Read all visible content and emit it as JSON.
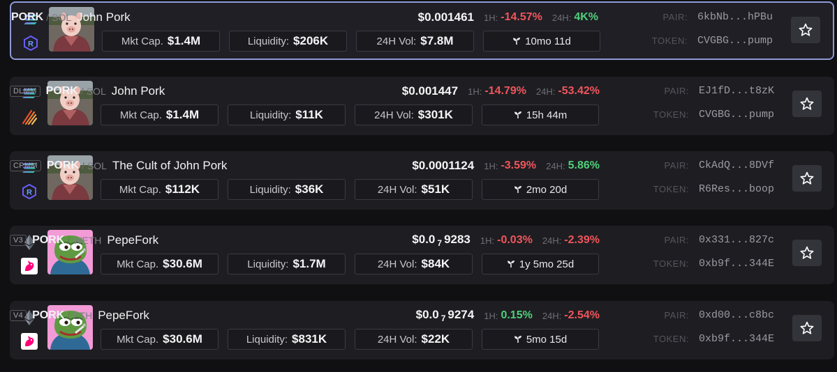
{
  "colors": {
    "negative": "#f0555b",
    "positive": "#4fd07a",
    "selected_border": "#8e9ad8"
  },
  "rows": [
    {
      "chain": "solana-icon",
      "dex": "raydium-icon",
      "avatar": "pig-avatar",
      "dex_badge": "",
      "symbol": "PORK",
      "quote": "SOL",
      "name": "John Pork",
      "price_prefix": "$0.001461",
      "price_sub": "",
      "price_rest": "",
      "h1_label": "1H:",
      "h1": "-14.57%",
      "h1_sign": "neg",
      "h24_label": "24H:",
      "h24": "4K%",
      "h24_sign": "pos",
      "mkt_label": "Mkt Cap.",
      "mkt": "$1.4M",
      "liq_label": "Liquidity:",
      "liq": "$206K",
      "vol_label": "24H Vol:",
      "vol": "$7.8M",
      "age": "10mo 11d",
      "pair_label": "PAIR:",
      "pair": "6kbNb...hPBu",
      "token_label": "TOKEN:",
      "token": "CVGBG...pump",
      "selected": true
    },
    {
      "chain": "solana-icon",
      "dex": "meteora-icon",
      "avatar": "pig-avatar",
      "dex_badge": "DLMM",
      "symbol": "PORK",
      "quote": "SOL",
      "name": "John Pork",
      "price_prefix": "$0.001447",
      "price_sub": "",
      "price_rest": "",
      "h1_label": "1H:",
      "h1": "-14.79%",
      "h1_sign": "neg",
      "h24_label": "24H:",
      "h24": "-53.42%",
      "h24_sign": "neg",
      "mkt_label": "Mkt Cap.",
      "mkt": "$1.4M",
      "liq_label": "Liquidity:",
      "liq": "$11K",
      "vol_label": "24H Vol:",
      "vol": "$301K",
      "age": "15h 44m",
      "pair_label": "PAIR:",
      "pair": "EJ1fD...t8zK",
      "token_label": "TOKEN:",
      "token": "CVGBG...pump",
      "selected": false
    },
    {
      "chain": "solana-icon",
      "dex": "raydium-icon",
      "avatar": "pig-avatar",
      "dex_badge": "CPMM",
      "symbol": "PORK",
      "quote": "SOL",
      "name": "The Cult of John Pork",
      "price_prefix": "$0.0001124",
      "price_sub": "",
      "price_rest": "",
      "h1_label": "1H:",
      "h1": "-3.59%",
      "h1_sign": "neg",
      "h24_label": "24H:",
      "h24": "5.86%",
      "h24_sign": "pos",
      "mkt_label": "Mkt Cap.",
      "mkt": "$112K",
      "liq_label": "Liquidity:",
      "liq": "$36K",
      "vol_label": "24H Vol:",
      "vol": "$51K",
      "age": "2mo 20d",
      "pair_label": "PAIR:",
      "pair": "CkAdQ...8DVf",
      "token_label": "TOKEN:",
      "token": "R6Res...boop",
      "selected": false
    },
    {
      "chain": "ethereum-icon",
      "dex": "uniswap-icon",
      "avatar": "pepe-avatar",
      "dex_badge": "V3",
      "symbol": "PORK",
      "quote": "WETH",
      "name": "PepeFork",
      "price_prefix": "$0.0",
      "price_sub": "7",
      "price_rest": "9283",
      "h1_label": "1H:",
      "h1": "-0.03%",
      "h1_sign": "neg",
      "h24_label": "24H:",
      "h24": "-2.39%",
      "h24_sign": "neg",
      "mkt_label": "Mkt Cap.",
      "mkt": "$30.6M",
      "liq_label": "Liquidity:",
      "liq": "$1.7M",
      "vol_label": "24H Vol:",
      "vol": "$84K",
      "age": "1y 5mo 25d",
      "pair_label": "PAIR:",
      "pair": "0x331...827c",
      "token_label": "TOKEN:",
      "token": "0xb9f...344E",
      "selected": false
    },
    {
      "chain": "ethereum-icon",
      "dex": "uniswap-icon",
      "avatar": "pepe-avatar",
      "dex_badge": "V4",
      "symbol": "PORK",
      "quote": "ETH",
      "name": "PepeFork",
      "price_prefix": "$0.0",
      "price_sub": "7",
      "price_rest": "9274",
      "h1_label": "1H:",
      "h1": "0.15%",
      "h1_sign": "pos",
      "h24_label": "24H:",
      "h24": "-2.54%",
      "h24_sign": "neg",
      "mkt_label": "Mkt Cap.",
      "mkt": "$30.6M",
      "liq_label": "Liquidity:",
      "liq": "$831K",
      "vol_label": "24H Vol:",
      "vol": "$22K",
      "age": "5mo 15d",
      "pair_label": "PAIR:",
      "pair": "0xd00...c8bc",
      "token_label": "TOKEN:",
      "token": "0xb9f...344E",
      "selected": false
    }
  ]
}
